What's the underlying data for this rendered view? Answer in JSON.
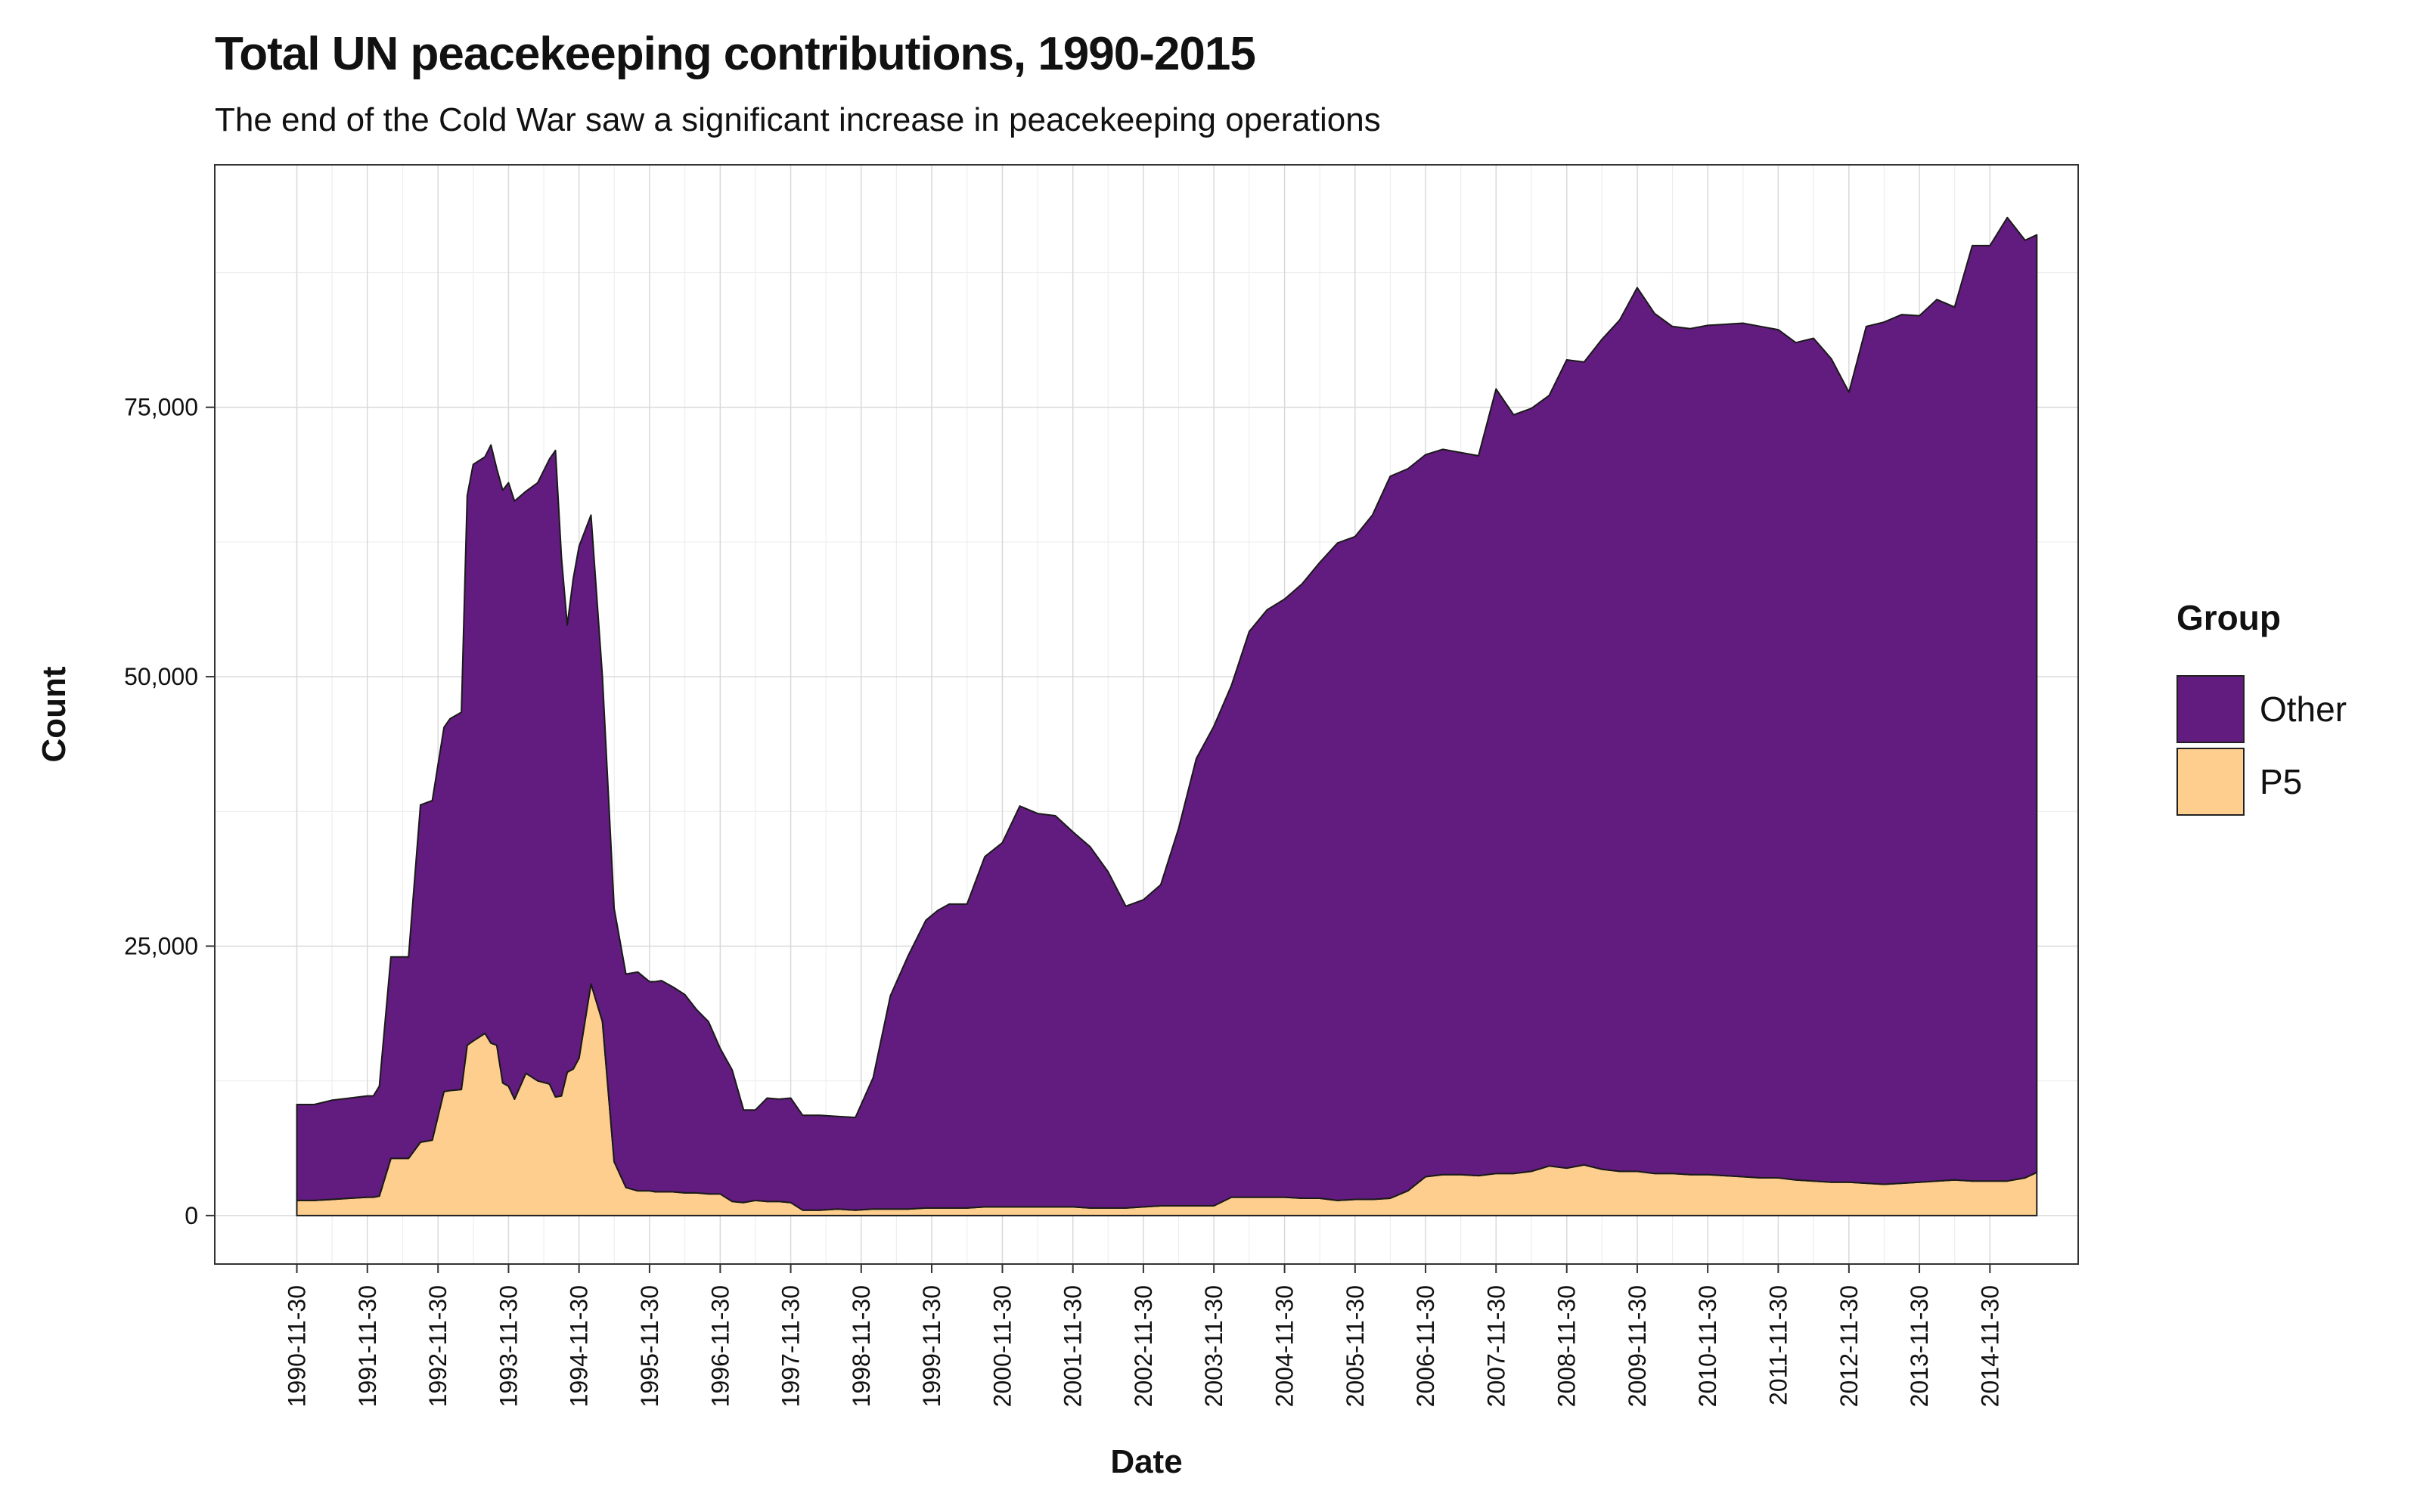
{
  "chart_data": {
    "type": "area",
    "stacked": true,
    "title": "Total UN peacekeeping contributions, 1990-2015",
    "subtitle": "The end of the Cold War saw a significant increase in peacekeeping operations",
    "xlabel": "Date",
    "ylabel": "Count",
    "ylim": [
      -4500,
      97500
    ],
    "xlim": [
      "1989-10-01",
      "2016-03-01"
    ],
    "yticks": [
      0,
      25000,
      50000,
      75000
    ],
    "ytick_labels": [
      "0",
      "25,000",
      "50,000",
      "75,000"
    ],
    "xticks": [
      "1990-11-30",
      "1991-11-30",
      "1992-11-30",
      "1993-11-30",
      "1994-11-30",
      "1995-11-30",
      "1996-11-30",
      "1997-11-30",
      "1998-11-30",
      "1999-11-30",
      "2000-11-30",
      "2001-11-30",
      "2002-11-30",
      "2003-11-30",
      "2004-11-30",
      "2005-11-30",
      "2006-11-30",
      "2007-11-30",
      "2008-11-30",
      "2009-11-30",
      "2010-11-30",
      "2011-11-30",
      "2012-11-30",
      "2013-11-30",
      "2014-11-30"
    ],
    "grid": true,
    "legend_title": "Group",
    "legend_position": "right",
    "x": [
      "1990-11-30",
      "1991-02-28",
      "1991-05-31",
      "1991-08-31",
      "1991-11-30",
      "1991-12-31",
      "1992-01-31",
      "1992-03-31",
      "1992-06-30",
      "1992-08-31",
      "1992-10-31",
      "1992-12-31",
      "1993-01-31",
      "1993-03-31",
      "1993-04-30",
      "1993-05-31",
      "1993-07-31",
      "1993-08-31",
      "1993-09-30",
      "1993-10-31",
      "1993-11-30",
      "1993-12-31",
      "1994-02-28",
      "1994-04-30",
      "1994-06-30",
      "1994-07-31",
      "1994-08-31",
      "1994-09-30",
      "1994-10-31",
      "1994-11-30",
      "1995-01-31",
      "1995-03-31",
      "1995-05-31",
      "1995-07-31",
      "1995-09-30",
      "1995-11-30",
      "1995-12-31",
      "1996-01-31",
      "1996-03-31",
      "1996-05-31",
      "1996-07-31",
      "1996-09-30",
      "1996-11-30",
      "1997-01-31",
      "1997-03-31",
      "1997-05-31",
      "1997-07-31",
      "1997-09-30",
      "1997-11-30",
      "1998-01-31",
      "1998-04-30",
      "1998-07-31",
      "1998-10-31",
      "1999-01-31",
      "1999-04-30",
      "1999-07-31",
      "1999-10-31",
      "1999-12-31",
      "2000-02-29",
      "2000-05-31",
      "2000-08-31",
      "2000-11-30",
      "2001-02-28",
      "2001-05-31",
      "2001-08-31",
      "2001-11-30",
      "2002-02-28",
      "2002-05-31",
      "2002-08-31",
      "2002-11-30",
      "2003-02-28",
      "2003-05-31",
      "2003-08-31",
      "2003-11-30",
      "2004-02-29",
      "2004-05-31",
      "2004-08-31",
      "2004-11-30",
      "2005-02-28",
      "2005-05-31",
      "2005-08-31",
      "2005-11-30",
      "2006-02-28",
      "2006-05-31",
      "2006-08-31",
      "2006-11-30",
      "2007-02-28",
      "2007-05-31",
      "2007-08-31",
      "2007-11-30",
      "2008-02-29",
      "2008-05-31",
      "2008-08-31",
      "2008-11-30",
      "2009-02-28",
      "2009-05-31",
      "2009-08-31",
      "2009-11-30",
      "2010-02-28",
      "2010-05-31",
      "2010-08-31",
      "2010-11-30",
      "2011-02-28",
      "2011-05-31",
      "2011-08-31",
      "2011-11-30",
      "2012-02-29",
      "2012-05-31",
      "2012-08-31",
      "2012-11-30",
      "2013-02-28",
      "2013-05-31",
      "2013-08-31",
      "2013-11-30",
      "2014-02-28",
      "2014-05-31",
      "2014-08-31",
      "2014-11-30",
      "2015-02-28",
      "2015-05-31",
      "2015-07-31"
    ],
    "series": [
      {
        "name": "P5",
        "color": "#FDCE8E",
        "values": [
          1400,
          1400,
          1500,
          1600,
          1700,
          1700,
          1800,
          5300,
          5300,
          6800,
          7000,
          11500,
          11600,
          11700,
          15800,
          16200,
          16900,
          16000,
          15800,
          12300,
          12000,
          10800,
          13200,
          12500,
          12200,
          11000,
          11100,
          13300,
          13600,
          14600,
          21500,
          18000,
          5000,
          2600,
          2300,
          2300,
          2200,
          2200,
          2200,
          2100,
          2100,
          2000,
          2000,
          1300,
          1200,
          1400,
          1300,
          1300,
          1200,
          500,
          500,
          600,
          500,
          600,
          600,
          600,
          700,
          700,
          700,
          700,
          800,
          800,
          800,
          800,
          800,
          800,
          700,
          700,
          700,
          800,
          900,
          900,
          900,
          900,
          1700,
          1700,
          1700,
          1700,
          1600,
          1600,
          1400,
          1500,
          1500,
          1600,
          2300,
          3600,
          3800,
          3800,
          3700,
          3900,
          3900,
          4100,
          4600,
          4400,
          4700,
          4300,
          4100,
          4100,
          3900,
          3900,
          3800,
          3800,
          3700,
          3600,
          3500,
          3500,
          3300,
          3200,
          3100,
          3100,
          3000,
          2900,
          3000,
          3100,
          3200,
          3300,
          3200,
          3200,
          3200,
          3500,
          4000
        ]
      },
      {
        "name": "Other",
        "color": "#621B7F",
        "values": [
          8900,
          8900,
          9200,
          9300,
          9400,
          9400,
          10200,
          18700,
          18700,
          31300,
          31500,
          33800,
          34500,
          35000,
          51000,
          53500,
          53500,
          55500,
          53500,
          55000,
          56000,
          55500,
          54000,
          55500,
          58000,
          60000,
          50000,
          41500,
          45500,
          47500,
          43500,
          32000,
          23500,
          19800,
          20300,
          19400,
          19500,
          19600,
          19000,
          18400,
          17000,
          16000,
          13500,
          12200,
          8600,
          8400,
          9600,
          9500,
          9700,
          8800,
          8800,
          8600,
          8600,
          12200,
          19800,
          23500,
          26700,
          27600,
          28200,
          28200,
          32500,
          33800,
          37200,
          36500,
          36300,
          34800,
          33500,
          31200,
          28000,
          28500,
          29800,
          35000,
          41500,
          44500,
          47500,
          52500,
          54500,
          55500,
          57000,
          59000,
          61000,
          61500,
          63500,
          67000,
          67000,
          67000,
          67300,
          67000,
          66800,
          72800,
          70400,
          70800,
          71500,
          75000,
          74500,
          77000,
          79000,
          82000,
          79800,
          78600,
          78500,
          78800,
          79000,
          79200,
          79000,
          78700,
          77700,
          78200,
          76400,
          73300,
          79500,
          80000,
          80600,
          80400,
          81800,
          81000,
          86800,
          86800,
          89400,
          87000,
          87000
        ]
      }
    ]
  }
}
